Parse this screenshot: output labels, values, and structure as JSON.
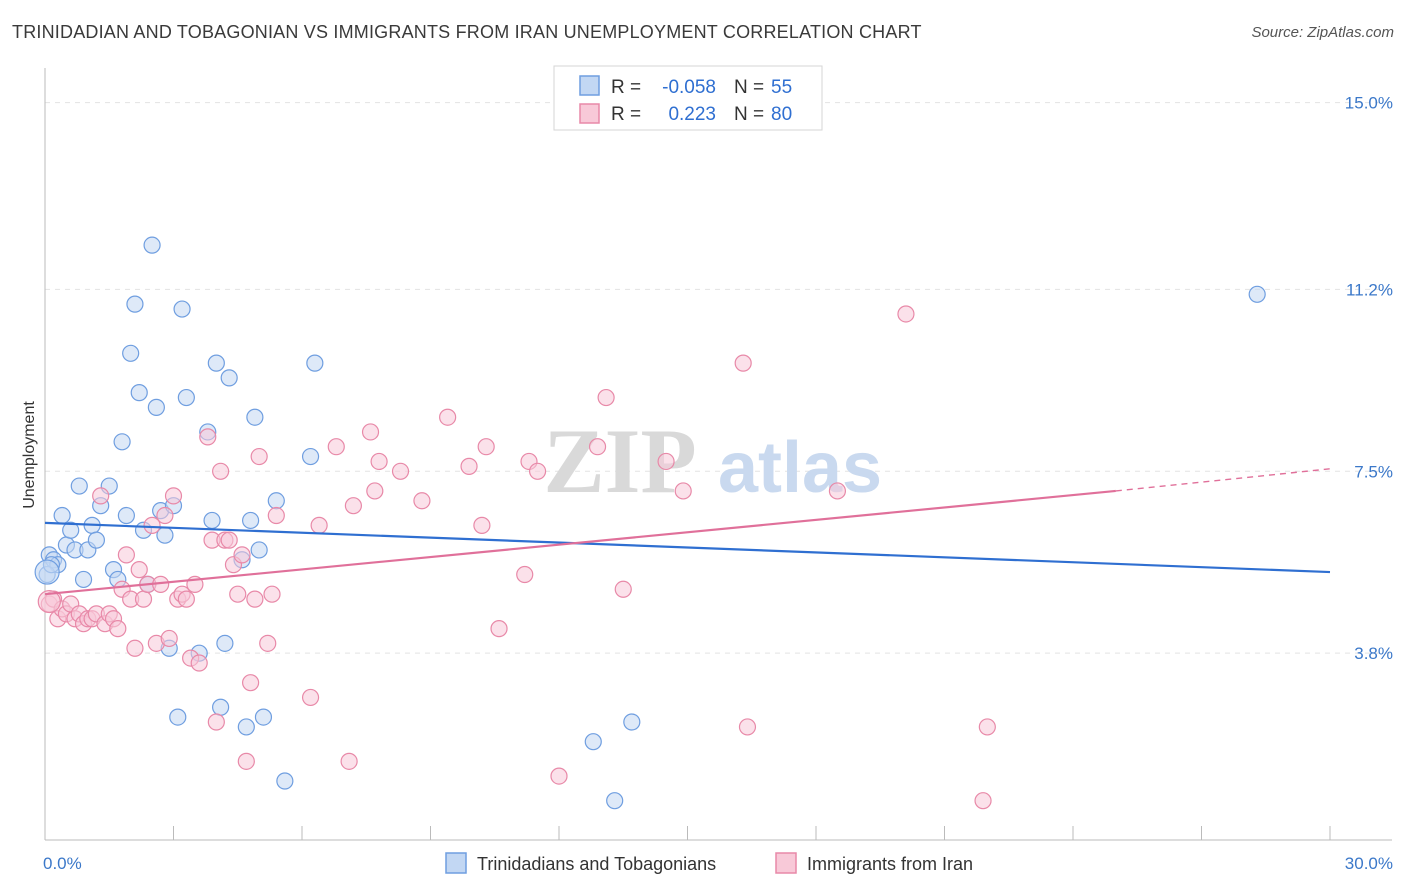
{
  "title": "TRINIDADIAN AND TOBAGONIAN VS IMMIGRANTS FROM IRAN UNEMPLOYMENT CORRELATION CHART",
  "source": "Source: ZipAtlas.com",
  "watermark": {
    "zip": "ZIP",
    "atlas": "atlas"
  },
  "legend": {
    "r_label": "R =",
    "n_label": "N =",
    "rows": [
      {
        "r": "-0.058",
        "n": "55",
        "color": "#6f9ee0",
        "fill": "#c2d7f3"
      },
      {
        "r": "0.223",
        "n": "80",
        "color": "#e889a8",
        "fill": "#f8c9d8"
      }
    ]
  },
  "chart_data": {
    "type": "scatter",
    "title": "TRINIDADIAN AND TOBAGONIAN VS IMMIGRANTS FROM IRAN UNEMPLOYMENT CORRELATION CHART",
    "xlabel": "",
    "ylabel": "Unemployment",
    "xlim": [
      0,
      30
    ],
    "ylim": [
      0,
      15.5
    ],
    "x_tick_labels": [
      "0.0%",
      "30.0%"
    ],
    "y_ticks": [
      3.8,
      7.5,
      11.2,
      15.0
    ],
    "y_tick_labels": [
      "3.8%",
      "7.5%",
      "11.2%",
      "15.0%"
    ],
    "series": [
      {
        "name": "Trinidadians and Tobagonians",
        "color": "#6f9ee0",
        "fill": "#c2d7f3",
        "line_color": "#2f6fd1",
        "trend": {
          "x0": 0,
          "y0": 6.45,
          "x1": 30,
          "y1": 5.45
        },
        "points": [
          [
            0.1,
            5.8
          ],
          [
            0.2,
            5.7
          ],
          [
            0.3,
            5.6
          ],
          [
            0.4,
            6.6
          ],
          [
            0.5,
            6.0
          ],
          [
            0.6,
            6.3
          ],
          [
            0.7,
            5.9
          ],
          [
            0.8,
            7.2
          ],
          [
            0.9,
            5.3
          ],
          [
            1.0,
            5.9
          ],
          [
            1.1,
            6.4
          ],
          [
            1.2,
            6.1
          ],
          [
            1.3,
            6.8
          ],
          [
            1.5,
            7.2
          ],
          [
            1.6,
            5.5
          ],
          [
            1.7,
            5.3
          ],
          [
            1.8,
            8.1
          ],
          [
            1.9,
            6.6
          ],
          [
            2.0,
            9.9
          ],
          [
            2.1,
            10.9
          ],
          [
            2.2,
            9.1
          ],
          [
            2.3,
            6.3
          ],
          [
            2.4,
            5.2
          ],
          [
            2.5,
            12.1
          ],
          [
            2.6,
            8.8
          ],
          [
            2.7,
            6.7
          ],
          [
            2.8,
            6.2
          ],
          [
            2.9,
            3.9
          ],
          [
            3.0,
            6.8
          ],
          [
            3.1,
            2.5
          ],
          [
            3.2,
            10.8
          ],
          [
            3.3,
            9.0
          ],
          [
            3.6,
            3.8
          ],
          [
            3.8,
            8.3
          ],
          [
            3.9,
            6.5
          ],
          [
            4.0,
            9.7
          ],
          [
            4.1,
            2.7
          ],
          [
            4.2,
            4.0
          ],
          [
            4.3,
            9.4
          ],
          [
            4.6,
            5.7
          ],
          [
            4.7,
            2.3
          ],
          [
            4.8,
            6.5
          ],
          [
            4.9,
            8.6
          ],
          [
            5.0,
            5.9
          ],
          [
            5.1,
            2.5
          ],
          [
            5.4,
            6.9
          ],
          [
            5.6,
            1.2
          ],
          [
            6.2,
            7.8
          ],
          [
            6.3,
            9.7
          ],
          [
            12.8,
            2.0
          ],
          [
            13.3,
            0.8
          ],
          [
            13.7,
            2.4
          ],
          [
            28.3,
            11.1
          ],
          [
            0.05,
            5.4
          ],
          [
            0.15,
            5.6
          ]
        ]
      },
      {
        "name": "Immigrants from Iran",
        "color": "#e889a8",
        "fill": "#f8c9d8",
        "line_color": "#e0709a",
        "trend": {
          "x0": 0,
          "y0": 5.0,
          "x1": 25.0,
          "y1": 7.1
        },
        "trend_dashed": {
          "x0": 25.0,
          "y0": 7.1,
          "x1": 30,
          "y1": 7.55
        },
        "points": [
          [
            0.1,
            4.8
          ],
          [
            0.2,
            4.9
          ],
          [
            0.3,
            4.5
          ],
          [
            0.4,
            4.7
          ],
          [
            0.5,
            4.6
          ],
          [
            0.6,
            4.8
          ],
          [
            0.7,
            4.5
          ],
          [
            0.8,
            4.6
          ],
          [
            0.9,
            4.4
          ],
          [
            1.0,
            4.5
          ],
          [
            1.1,
            4.5
          ],
          [
            1.2,
            4.6
          ],
          [
            1.3,
            7.0
          ],
          [
            1.4,
            4.4
          ],
          [
            1.5,
            4.6
          ],
          [
            1.6,
            4.5
          ],
          [
            1.7,
            4.3
          ],
          [
            1.8,
            5.1
          ],
          [
            1.9,
            5.8
          ],
          [
            2.0,
            4.9
          ],
          [
            2.1,
            3.9
          ],
          [
            2.2,
            5.5
          ],
          [
            2.3,
            4.9
          ],
          [
            2.4,
            5.2
          ],
          [
            2.5,
            6.4
          ],
          [
            2.6,
            4.0
          ],
          [
            2.7,
            5.2
          ],
          [
            2.8,
            6.6
          ],
          [
            2.9,
            4.1
          ],
          [
            3.0,
            7.0
          ],
          [
            3.1,
            4.9
          ],
          [
            3.2,
            5.0
          ],
          [
            3.3,
            4.9
          ],
          [
            3.4,
            3.7
          ],
          [
            3.5,
            5.2
          ],
          [
            3.6,
            3.6
          ],
          [
            3.8,
            8.2
          ],
          [
            3.9,
            6.1
          ],
          [
            4.0,
            2.4
          ],
          [
            4.1,
            7.5
          ],
          [
            4.2,
            6.1
          ],
          [
            4.3,
            6.1
          ],
          [
            4.4,
            5.6
          ],
          [
            4.5,
            5.0
          ],
          [
            4.6,
            5.8
          ],
          [
            4.7,
            1.6
          ],
          [
            4.8,
            3.2
          ],
          [
            4.9,
            4.9
          ],
          [
            5.0,
            7.8
          ],
          [
            5.2,
            4.0
          ],
          [
            5.3,
            5.0
          ],
          [
            5.4,
            6.6
          ],
          [
            6.2,
            2.9
          ],
          [
            6.4,
            6.4
          ],
          [
            6.8,
            8.0
          ],
          [
            7.1,
            1.6
          ],
          [
            7.2,
            6.8
          ],
          [
            7.6,
            8.3
          ],
          [
            7.7,
            7.1
          ],
          [
            7.8,
            7.7
          ],
          [
            8.3,
            7.5
          ],
          [
            8.8,
            6.9
          ],
          [
            9.4,
            8.6
          ],
          [
            9.9,
            7.6
          ],
          [
            10.2,
            6.4
          ],
          [
            10.3,
            8.0
          ],
          [
            10.6,
            4.3
          ],
          [
            11.2,
            5.4
          ],
          [
            11.3,
            7.7
          ],
          [
            11.5,
            7.5
          ],
          [
            12.0,
            1.3
          ],
          [
            12.9,
            8.0
          ],
          [
            13.1,
            9.0
          ],
          [
            13.5,
            5.1
          ],
          [
            14.5,
            7.7
          ],
          [
            14.9,
            7.1
          ],
          [
            16.3,
            9.7
          ],
          [
            16.4,
            2.3
          ],
          [
            18.5,
            7.1
          ],
          [
            20.1,
            10.7
          ]
        ],
        "extra_points": [
          [
            22.0,
            2.3
          ],
          [
            21.9,
            0.8
          ]
        ]
      }
    ],
    "legend_placement": "top-center"
  }
}
